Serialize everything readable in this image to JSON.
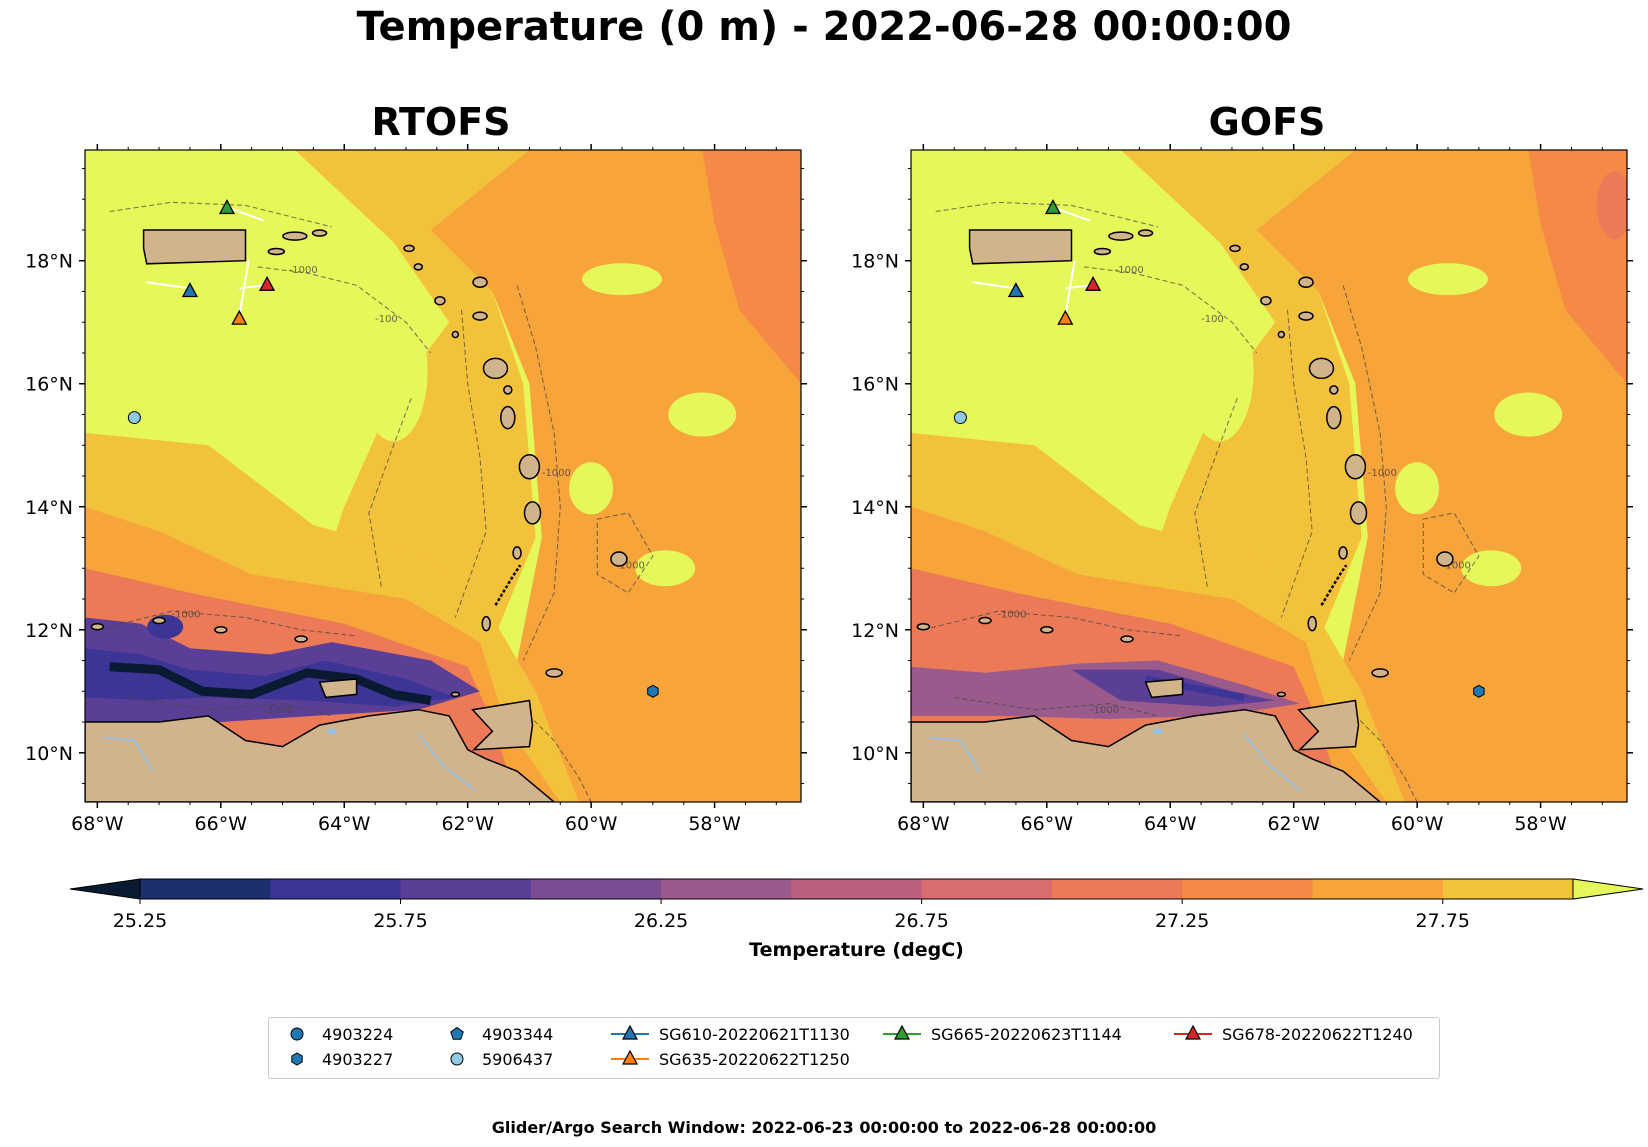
{
  "title": "Temperature (0 m) - 2022-06-28 00:00:00",
  "panels": [
    {
      "title": "RTOFS"
    },
    {
      "title": "GOFS"
    }
  ],
  "colorbar": {
    "label": "Temperature (degC)",
    "ticks": [
      "25.25",
      "25.75",
      "26.25",
      "26.75",
      "27.25",
      "27.75"
    ],
    "colors": [
      "#0b1a33",
      "#1d2f6e",
      "#3d3596",
      "#5b3f96",
      "#7a4e92",
      "#9b5a8c",
      "#bb6180",
      "#d96c70",
      "#ec7a57",
      "#f58a46",
      "#f7a43a",
      "#f3c23b",
      "#e6f75a"
    ]
  },
  "chart_data": {
    "type": "heatmap",
    "variable": "Temperature (0 m)",
    "units": "degC",
    "datetime": "2022-06-28 00:00:00",
    "color_range": [
      25.0,
      28.0
    ],
    "contour_levels": [
      25.25,
      25.5,
      25.75,
      26.0,
      26.25,
      26.5,
      26.75,
      27.0,
      27.25,
      27.5,
      27.75
    ],
    "x_ticks": [
      "68°W",
      "66°W",
      "64°W",
      "62°W",
      "60°W",
      "58°W"
    ],
    "y_ticks": [
      "10°N",
      "12°N",
      "14°N",
      "16°N",
      "18°N"
    ],
    "xlim": [
      -68.2,
      -56.6
    ],
    "ylim": [
      9.2,
      19.8
    ],
    "bathymetry_labels": [
      "-1000",
      "-100"
    ],
    "panels": [
      "RTOFS",
      "GOFS"
    ],
    "argo_floats": [
      {
        "name": "4903224",
        "marker": "circle",
        "color": "#1f77b4"
      },
      {
        "name": "4903227",
        "marker": "hexagon",
        "color": "#1f77b4",
        "lon": -59.0,
        "lat": 11.0
      },
      {
        "name": "4903344",
        "marker": "pentagon",
        "color": "#1f77b4"
      },
      {
        "name": "5906437",
        "marker": "circle",
        "color": "#8ecae6",
        "lon": -67.4,
        "lat": 15.45
      }
    ],
    "gliders": [
      {
        "name": "SG610-20220621T1130",
        "color": "#1f77b4",
        "lon": -66.5,
        "lat": 17.5,
        "track": [
          [
            -67.2,
            17.65
          ],
          [
            -66.5,
            17.55
          ]
        ]
      },
      {
        "name": "SG635-20220622T1250",
        "color": "#ff7f0e",
        "lon": -65.7,
        "lat": 17.05,
        "track": [
          [
            -65.55,
            18.0
          ],
          [
            -65.7,
            17.1
          ]
        ]
      },
      {
        "name": "SG665-20220623T1144",
        "color": "#2ca02c",
        "lon": -65.9,
        "lat": 18.85,
        "track": [
          [
            -65.3,
            18.65
          ],
          [
            -65.85,
            18.85
          ]
        ]
      },
      {
        "name": "SG678-20220622T1240",
        "color": "#d62728",
        "lon": -65.25,
        "lat": 17.6,
        "track": [
          [
            -65.7,
            17.55
          ],
          [
            -65.3,
            17.6
          ]
        ]
      }
    ]
  },
  "legend": {
    "items": [
      {
        "label": "4903224",
        "icon": "circle-marker-icon"
      },
      {
        "label": "4903227",
        "icon": "hexagon-marker-icon"
      },
      {
        "label": "4903344",
        "icon": "pentagon-marker-icon"
      },
      {
        "label": "5906437",
        "icon": "circle-marker-icon"
      },
      {
        "label": "SG610-20220621T1130",
        "icon": "triangle-line-icon"
      },
      {
        "label": "SG635-20220622T1250",
        "icon": "triangle-line-icon"
      },
      {
        "label": "SG665-20220623T1144",
        "icon": "triangle-line-icon"
      },
      {
        "label": "SG678-20220622T1240",
        "icon": "triangle-line-icon"
      }
    ]
  },
  "footer": "Glider/Argo Search Window: 2022-06-23 00:00:00 to 2022-06-28 00:00:00"
}
